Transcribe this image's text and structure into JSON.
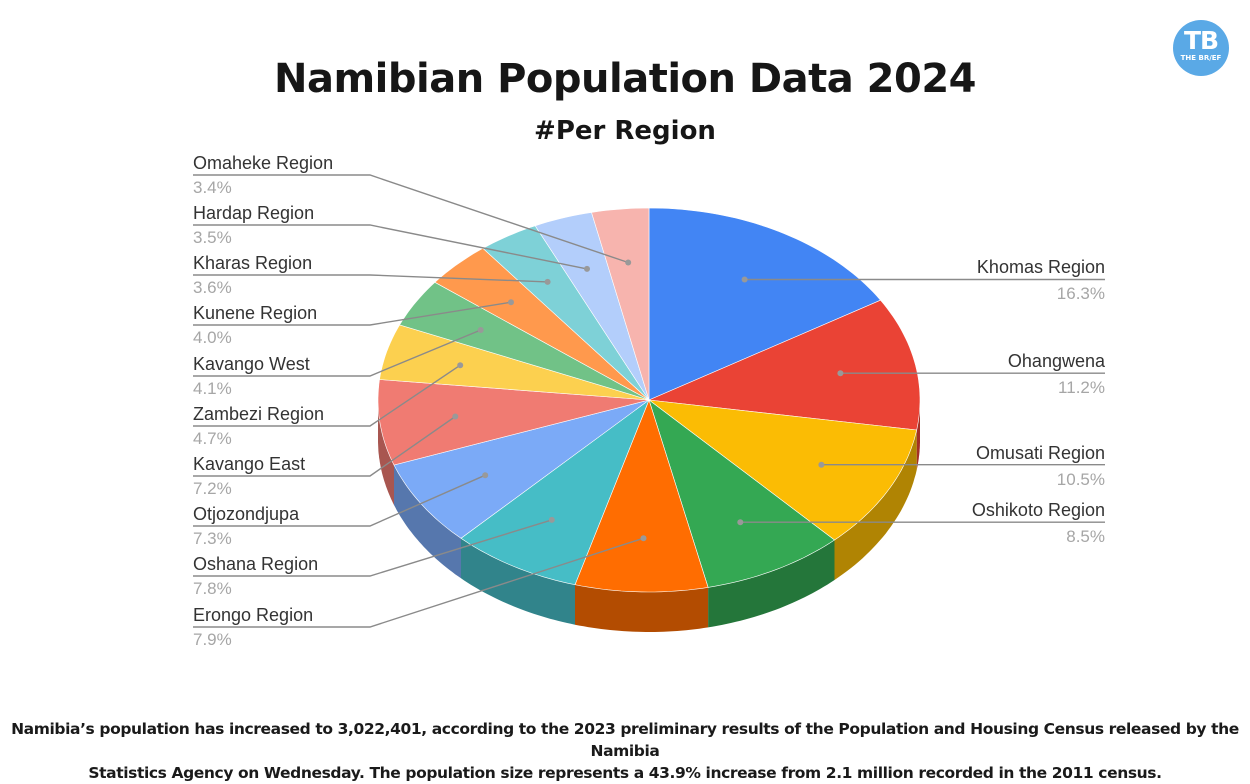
{
  "header": {
    "title": "Namibian Population Data 2024",
    "subtitle": "#Per Region"
  },
  "logo": {
    "initials": "TB",
    "name": "THE BR/EF",
    "color": "#5aa9e6"
  },
  "footer": {
    "line1": "Namibia’s population has increased to 3,022,401, according to the 2023 preliminary results of the Population and Housing Census released by the Namibia",
    "line2": "Statistics Agency on Wednesday. The population size represents a 43.9% increase from 2.1 million recorded in the 2011 census."
  },
  "chart_data": {
    "type": "pie",
    "style": "3d",
    "title": "Namibian Population Data 2024",
    "subtitle": "#Per Region",
    "start_angle": "12 o'clock, clockwise",
    "categories": [
      "Khomas Region",
      "Ohangwena",
      "Omusati Region",
      "Oshikoto Region",
      "Erongo Region",
      "Oshana Region",
      "Otjozondjupa",
      "Kavango East",
      "Zambezi Region",
      "Kavango West",
      "Kunene Region",
      "Kharas Region",
      "Hardap Region",
      "Omaheke Region"
    ],
    "values": [
      16.3,
      11.2,
      10.5,
      8.5,
      7.9,
      7.8,
      7.3,
      7.2,
      4.7,
      4.1,
      4.0,
      3.6,
      3.5,
      3.4
    ],
    "unit": "%",
    "colors": [
      "#4285f4",
      "#ea4335",
      "#fbbc04",
      "#34a853",
      "#ff6d01",
      "#46bdc6",
      "#7baaf7",
      "#f07b72",
      "#fcd04f",
      "#71c287",
      "#ff994d",
      "#7ed1d7",
      "#b3cefb",
      "#f7b4ae"
    ],
    "labels": [
      {
        "name": "Khomas Region",
        "pct": "16.3%",
        "side": "right"
      },
      {
        "name": "Ohangwena",
        "pct": "11.2%",
        "side": "right"
      },
      {
        "name": "Omusati Region",
        "pct": "10.5%",
        "side": "right"
      },
      {
        "name": "Oshikoto Region",
        "pct": "8.5%",
        "side": "right"
      },
      {
        "name": "Erongo Region",
        "pct": "7.9%",
        "side": "left"
      },
      {
        "name": "Oshana Region",
        "pct": "7.8%",
        "side": "left"
      },
      {
        "name": "Otjozondjupa",
        "pct": "7.3%",
        "side": "left"
      },
      {
        "name": "Kavango East",
        "pct": "7.2%",
        "side": "left"
      },
      {
        "name": "Zambezi Region",
        "pct": "4.7%",
        "side": "left"
      },
      {
        "name": "Kavango West",
        "pct": "4.1%",
        "side": "left"
      },
      {
        "name": "Kunene Region",
        "pct": "4.0%",
        "side": "left"
      },
      {
        "name": "Kharas Region",
        "pct": "3.6%",
        "side": "left"
      },
      {
        "name": "Hardap Region",
        "pct": "3.5%",
        "side": "left"
      },
      {
        "name": "Omaheke Region",
        "pct": "3.4%",
        "side": "left"
      }
    ],
    "legend": "callout labels",
    "grid": false
  }
}
